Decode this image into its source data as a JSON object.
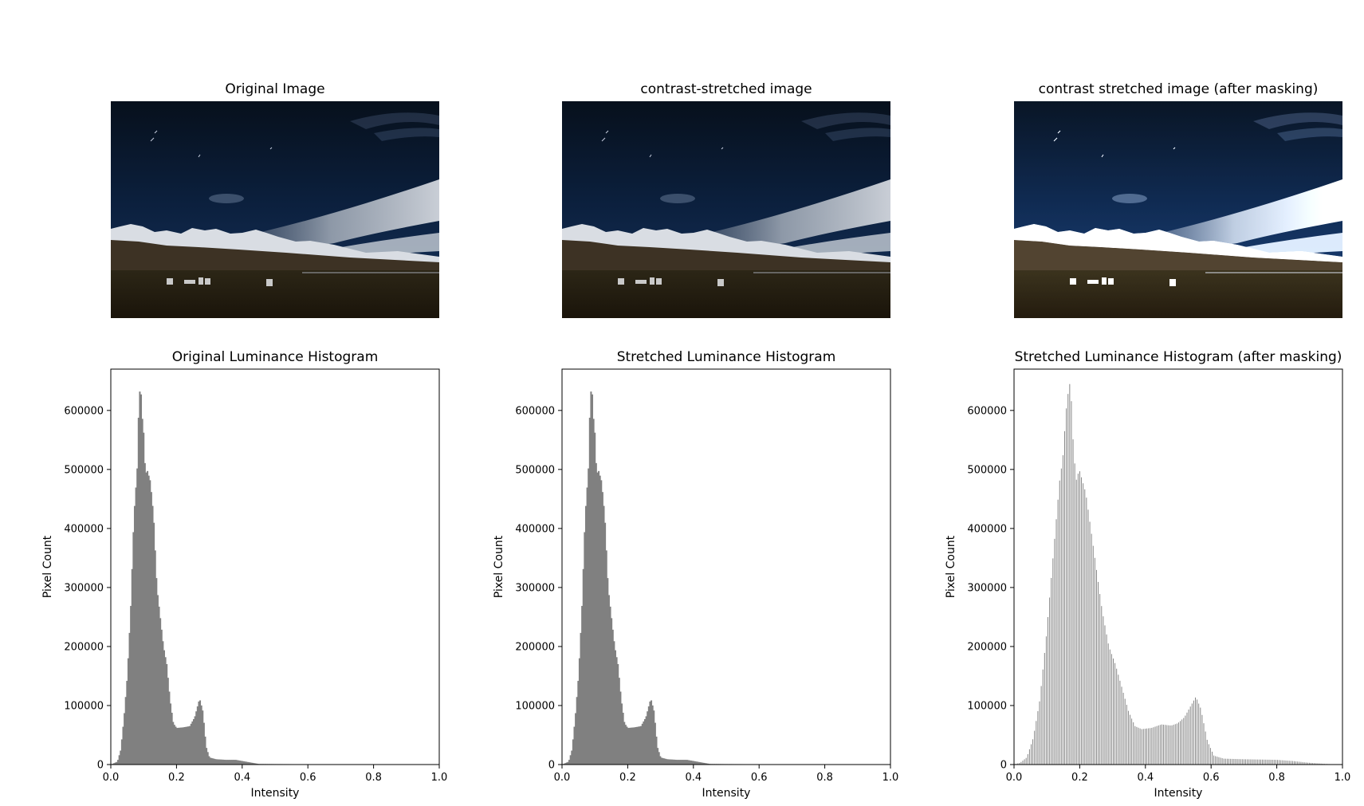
{
  "figure": {
    "image_panels": [
      {
        "title": "Original Image",
        "brightness": 1.0
      },
      {
        "title": "contrast-stretched image",
        "brightness": 1.0
      },
      {
        "title": "contrast stretched image (after masking)",
        "brightness": 1.35
      }
    ]
  },
  "chart_data": [
    {
      "type": "bar",
      "title": "Original Luminance Histogram",
      "xlabel": "Intensity",
      "ylabel": "Pixel Count",
      "xlim": [
        0.0,
        1.0
      ],
      "ylim": [
        0,
        670000
      ],
      "xticks": [
        "0.0",
        "0.2",
        "0.4",
        "0.6",
        "0.8",
        "1.0"
      ],
      "yticks": [
        "0",
        "100000",
        "200000",
        "300000",
        "400000",
        "500000",
        "600000"
      ],
      "bar_color": "#808080",
      "bins": "continuous",
      "x": [
        0.0,
        0.02,
        0.03,
        0.04,
        0.05,
        0.06,
        0.07,
        0.08,
        0.085,
        0.09,
        0.095,
        0.1,
        0.105,
        0.11,
        0.12,
        0.13,
        0.14,
        0.15,
        0.16,
        0.17,
        0.18,
        0.19,
        0.2,
        0.22,
        0.24,
        0.255,
        0.27,
        0.28,
        0.29,
        0.3,
        0.32,
        0.35,
        0.38,
        0.4,
        0.42,
        0.45,
        0.5,
        0.6,
        0.8,
        0.9,
        1.0
      ],
      "y": [
        0,
        5000,
        25000,
        80000,
        150000,
        260000,
        420000,
        500000,
        610000,
        648000,
        590000,
        560000,
        490000,
        500000,
        480000,
        420000,
        300000,
        250000,
        200000,
        170000,
        110000,
        70000,
        62000,
        63000,
        65000,
        80000,
        112000,
        90000,
        30000,
        12000,
        9000,
        8000,
        8000,
        6000,
        4000,
        1000,
        800,
        600,
        300,
        100,
        0
      ]
    },
    {
      "type": "bar",
      "title": "Stretched Luminance Histogram",
      "xlabel": "Intensity",
      "ylabel": "Pixel Count",
      "xlim": [
        0.0,
        1.0
      ],
      "ylim": [
        0,
        670000
      ],
      "xticks": [
        "0.0",
        "0.2",
        "0.4",
        "0.6",
        "0.8",
        "1.0"
      ],
      "yticks": [
        "0",
        "100000",
        "200000",
        "300000",
        "400000",
        "500000",
        "600000"
      ],
      "bar_color": "#808080",
      "bins": "continuous",
      "x": [
        0.0,
        0.02,
        0.03,
        0.04,
        0.05,
        0.06,
        0.07,
        0.08,
        0.085,
        0.09,
        0.095,
        0.1,
        0.105,
        0.11,
        0.12,
        0.13,
        0.14,
        0.15,
        0.16,
        0.17,
        0.18,
        0.19,
        0.2,
        0.22,
        0.24,
        0.255,
        0.27,
        0.28,
        0.29,
        0.3,
        0.32,
        0.35,
        0.38,
        0.4,
        0.42,
        0.45,
        0.5,
        0.6,
        0.8,
        0.9,
        1.0
      ],
      "y": [
        0,
        5000,
        25000,
        80000,
        150000,
        260000,
        420000,
        500000,
        610000,
        648000,
        590000,
        560000,
        490000,
        500000,
        480000,
        420000,
        300000,
        250000,
        200000,
        170000,
        110000,
        70000,
        62000,
        63000,
        65000,
        80000,
        112000,
        90000,
        30000,
        12000,
        9000,
        8000,
        8000,
        6000,
        4000,
        1000,
        800,
        600,
        300,
        100,
        0
      ]
    },
    {
      "type": "bar",
      "title": "Stretched Luminance Histogram (after masking)",
      "xlabel": "Intensity",
      "ylabel": "Pixel Count",
      "xlim": [
        0.0,
        1.0
      ],
      "ylim": [
        0,
        670000
      ],
      "xticks": [
        "0.0",
        "0.2",
        "0.4",
        "0.6",
        "0.8",
        "1.0"
      ],
      "yticks": [
        "0",
        "100000",
        "200000",
        "300000",
        "400000",
        "500000",
        "600000"
      ],
      "bar_color": "#808080",
      "bins": "sparse",
      "x": [
        0.0,
        0.02,
        0.04,
        0.06,
        0.08,
        0.1,
        0.12,
        0.14,
        0.15,
        0.16,
        0.17,
        0.175,
        0.18,
        0.19,
        0.2,
        0.21,
        0.22,
        0.23,
        0.25,
        0.27,
        0.29,
        0.31,
        0.33,
        0.35,
        0.37,
        0.39,
        0.42,
        0.45,
        0.48,
        0.5,
        0.52,
        0.54,
        0.555,
        0.57,
        0.59,
        0.61,
        0.64,
        0.7,
        0.8,
        0.85,
        0.9,
        0.95,
        1.0
      ],
      "y": [
        0,
        3000,
        12000,
        45000,
        110000,
        220000,
        350000,
        480000,
        520000,
        600000,
        648000,
        630000,
        560000,
        480000,
        500000,
        480000,
        460000,
        420000,
        340000,
        260000,
        200000,
        170000,
        130000,
        90000,
        65000,
        60000,
        62000,
        68000,
        66000,
        70000,
        80000,
        100000,
        115000,
        95000,
        40000,
        15000,
        10000,
        9000,
        8000,
        6000,
        3000,
        1000,
        0
      ]
    }
  ]
}
